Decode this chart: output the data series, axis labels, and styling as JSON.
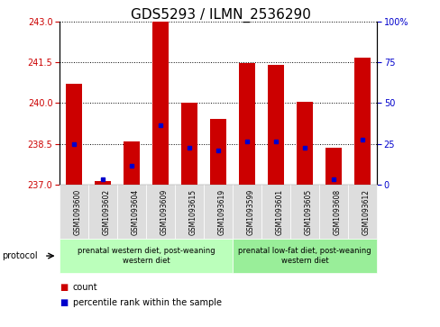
{
  "title": "GDS5293 / ILMN_2536290",
  "samples": [
    "GSM1093600",
    "GSM1093602",
    "GSM1093604",
    "GSM1093609",
    "GSM1093615",
    "GSM1093619",
    "GSM1093599",
    "GSM1093601",
    "GSM1093605",
    "GSM1093608",
    "GSM1093612"
  ],
  "bar_tops": [
    240.7,
    237.15,
    238.6,
    243.0,
    240.0,
    239.4,
    241.45,
    241.4,
    240.05,
    238.35,
    241.65
  ],
  "bar_base": 237.0,
  "blue_values": [
    238.5,
    237.2,
    237.7,
    239.2,
    238.35,
    238.25,
    238.6,
    238.6,
    238.35,
    237.2,
    238.65
  ],
  "ylim": [
    237.0,
    243.0
  ],
  "yticks_left": [
    237,
    238.5,
    240,
    241.5,
    243
  ],
  "yticks_right": [
    0,
    25,
    50,
    75,
    100
  ],
  "bar_color": "#cc0000",
  "blue_color": "#0000cc",
  "group1_label": "prenatal western diet, post-weaning\nwestern diet",
  "group2_label": "prenatal low-fat diet, post-weaning\nwestern diet",
  "group1_indices": [
    0,
    1,
    2,
    3,
    4,
    5
  ],
  "group2_indices": [
    6,
    7,
    8,
    9,
    10
  ],
  "group1_color": "#bbffbb",
  "group2_color": "#99ee99",
  "sample_bg_color": "#dddddd",
  "protocol_label": "protocol",
  "legend_count": "count",
  "legend_pct": "percentile rank within the sample",
  "ylabel_color_left": "#cc0000",
  "ylabel_color_right": "#0000cc",
  "title_fontsize": 11,
  "tick_fontsize": 7,
  "label_fontsize": 7,
  "bar_width": 0.55
}
